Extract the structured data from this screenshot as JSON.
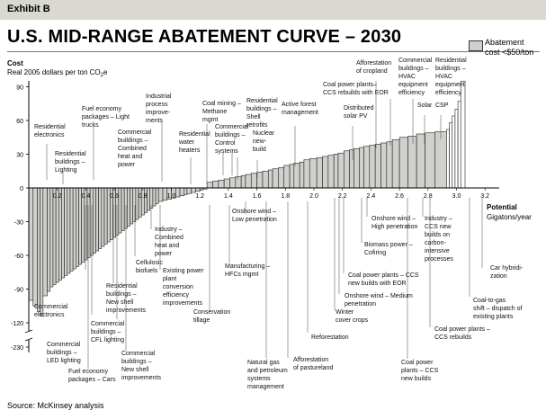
{
  "exhibit": "Exhibit B",
  "title": "U.S. MID-RANGE ABATEMENT CURVE – 2030",
  "legend": {
    "label_line1": "Abatement",
    "label_line2": "cost <$50/ton",
    "swatch_color": "#d0d0cc"
  },
  "source": "Source: McKinsey analysis",
  "chart_data": {
    "type": "bar",
    "subtype": "marginal abatement cost curve (variable-width bars)",
    "ylabel_line1": "Cost",
    "ylabel_line2": "Real 2005 dollars per ton CO",
    "ylabel_sub": "2",
    "ylabel_tail": "e",
    "xlabel_line1": "Potential",
    "xlabel_line2": "Gigatons/year",
    "x_ticks": [
      "0.2",
      "0.4",
      "0.6",
      "0.8",
      "1.0",
      "1.2",
      "1.4",
      "1.6",
      "1.8",
      "2.0",
      "2.2",
      "2.4",
      "2.6",
      "2.8",
      "3.0",
      "3.2"
    ],
    "y_ticks": [
      "90",
      "60",
      "30",
      "0",
      "-30",
      "-60",
      "-90",
      "-120",
      "-230"
    ],
    "xlim": [
      0,
      3.3
    ],
    "ylim": [
      -230,
      100
    ],
    "axis_break_between": [
      -120,
      -230
    ],
    "fill_under_50": "#d0d0cc",
    "fill_over_50": "#ffffff",
    "values": [
      [
        0.03,
        -100
      ],
      [
        0.03,
        -105
      ],
      [
        0.02,
        -110
      ],
      [
        0.02,
        -114
      ],
      [
        0.03,
        -96
      ],
      [
        0.02,
        -92
      ],
      [
        0.02,
        -88
      ],
      [
        0.02,
        -86
      ],
      [
        0.02,
        -84
      ],
      [
        0.02,
        -82
      ],
      [
        0.02,
        -80
      ],
      [
        0.02,
        -78
      ],
      [
        0.02,
        -76
      ],
      [
        0.02,
        -74
      ],
      [
        0.02,
        -72
      ],
      [
        0.02,
        -70
      ],
      [
        0.02,
        -68
      ],
      [
        0.02,
        -66
      ],
      [
        0.02,
        -64
      ],
      [
        0.02,
        -62
      ],
      [
        0.02,
        -60
      ],
      [
        0.02,
        -58
      ],
      [
        0.02,
        -56
      ],
      [
        0.02,
        -54
      ],
      [
        0.02,
        -52
      ],
      [
        0.02,
        -50
      ],
      [
        0.02,
        -48
      ],
      [
        0.02,
        -46
      ],
      [
        0.02,
        -44
      ],
      [
        0.02,
        -42
      ],
      [
        0.02,
        -40
      ],
      [
        0.02,
        -38
      ],
      [
        0.02,
        -36
      ],
      [
        0.02,
        -34
      ],
      [
        0.02,
        -32
      ],
      [
        0.02,
        -30
      ],
      [
        0.02,
        -28
      ],
      [
        0.02,
        -26
      ],
      [
        0.02,
        -24
      ],
      [
        0.02,
        -22
      ],
      [
        0.02,
        -20
      ],
      [
        0.02,
        -18
      ],
      [
        0.02,
        -16
      ],
      [
        0.02,
        -14
      ],
      [
        0.03,
        -12
      ],
      [
        0.03,
        -11
      ],
      [
        0.03,
        -10
      ],
      [
        0.03,
        -9
      ],
      [
        0.03,
        -8
      ],
      [
        0.03,
        -7
      ],
      [
        0.02,
        -6
      ],
      [
        0.03,
        -5
      ],
      [
        0.03,
        -4
      ],
      [
        0.03,
        -3
      ],
      [
        0.02,
        -2
      ],
      [
        0.03,
        -1
      ],
      [
        0.04,
        5
      ],
      [
        0.04,
        6
      ],
      [
        0.04,
        7
      ],
      [
        0.04,
        8
      ],
      [
        0.04,
        9
      ],
      [
        0.04,
        10
      ],
      [
        0.03,
        11
      ],
      [
        0.04,
        12
      ],
      [
        0.04,
        13
      ],
      [
        0.04,
        14
      ],
      [
        0.04,
        15
      ],
      [
        0.03,
        16
      ],
      [
        0.04,
        17
      ],
      [
        0.04,
        18
      ],
      [
        0.04,
        20
      ],
      [
        0.03,
        21
      ],
      [
        0.04,
        22
      ],
      [
        0.03,
        23
      ],
      [
        0.04,
        25
      ],
      [
        0.05,
        26
      ],
      [
        0.04,
        27
      ],
      [
        0.04,
        28
      ],
      [
        0.04,
        29
      ],
      [
        0.03,
        30
      ],
      [
        0.04,
        31
      ],
      [
        0.04,
        33
      ],
      [
        0.03,
        34
      ],
      [
        0.04,
        35
      ],
      [
        0.03,
        36
      ],
      [
        0.04,
        37
      ],
      [
        0.04,
        38
      ],
      [
        0.04,
        39
      ],
      [
        0.04,
        40
      ],
      [
        0.04,
        41
      ],
      [
        0.05,
        43
      ],
      [
        0.06,
        45
      ],
      [
        0.06,
        46
      ],
      [
        0.06,
        48
      ],
      [
        0.07,
        49
      ],
      [
        0.08,
        50
      ],
      [
        0.02,
        52
      ],
      [
        0.02,
        58
      ],
      [
        0.02,
        64
      ],
      [
        0.02,
        70
      ],
      [
        0.02,
        77
      ],
      [
        0.03,
        95
      ]
    ],
    "y_labels_text": {
      "y90": "90",
      "y60": "60",
      "y30": "30",
      "y0": "0",
      "yn30": "-30",
      "yn60": "-60",
      "yn90": "-90",
      "yn120": "-120",
      "yn230": "-230"
    },
    "annotations": [
      "Residential electronics",
      "Residential buildings – Lighting",
      "Fuel economy packages – Light trucks",
      "Commercial buildings – Combined heat and power",
      "Industrial process improve- ments",
      "Residential water heaters",
      "Coal mining – Methane mgmt",
      "Commercial buildings – Control systems",
      "Residential buildings – Shell retrofits",
      "Nuclear new- build",
      "Active forest management",
      "Coal power plants– CCS rebuilds with EOR",
      "Afforestation of cropland",
      "Distributed solar PV",
      "Commercial buildings – HVAC equipment efficiency",
      "Residential buildings – HVAC equipment efficiency",
      "Solar",
      "CSP",
      "Commercial electronics",
      "Commercial buildings – LED lighting",
      "Fuel economy packages – Cars",
      "Residential buildings – New shell improvements",
      "Commercial buildings – CFL lighting",
      "Commercial buildings – New shell improvements",
      "Cellulosic biofuels",
      "Industry – Combined heat and power",
      "Existing power plant conversion efficiency improvements",
      "Conservation tillage",
      "Manufacturing – HFCs mgmt",
      "Onshore wind – Low penetration",
      "Natural gas and petroleum systems management",
      "Afforestation of pastureland",
      "Reforestation",
      "Winter cover crops",
      "Onshore wind – Medium penetration",
      "Coal power plants – CCS new builds with EOR",
      "Biomass power – Cofiring",
      "Onshore wind – High penetration",
      "Industry – CCS new builds on carbon- intensive processes",
      "Coal power plants – CCS rebuilds",
      "Coal power plants – CCS new builds",
      "Coal-to-gas shift – dispatch of existing plants",
      "Car hybridi- zation"
    ]
  }
}
